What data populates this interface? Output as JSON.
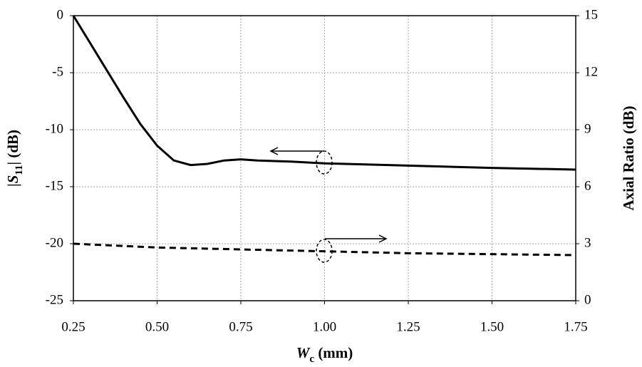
{
  "chart_data": {
    "type": "line",
    "x_label": [
      "W",
      "c",
      " (mm)"
    ],
    "y_label": [
      "|",
      "S",
      "11",
      "| (dB)"
    ],
    "y2_label": "Axial Ratio (dB)",
    "xlim": [
      0.25,
      1.75
    ],
    "xticks": [
      0.25,
      {
        "value": 0.5,
        "label": "0.50"
      },
      0.75,
      {
        "value": 1,
        "label": "1.00"
      },
      1.25,
      {
        "value": 1.5,
        "label": "1.50"
      },
      1.75
    ],
    "ylim": [
      -25,
      0
    ],
    "yticks": [
      -25,
      -20,
      -15,
      -10,
      -5,
      0
    ],
    "y2lim": [
      0,
      15
    ],
    "y2ticks": [
      0,
      3,
      6,
      9,
      12,
      15
    ],
    "grid": true,
    "series": [
      {
        "color": "#000000",
        "dash": false,
        "x": [
          0.25,
          0.3,
          0.35,
          0.4,
          0.45,
          0.5,
          0.55,
          0.6,
          0.65,
          0.7,
          0.75,
          0.8,
          0.9,
          1.0,
          1.25,
          1.5,
          1.75
        ],
        "values": [
          0,
          -2.4,
          -4.8,
          -7.2,
          -9.5,
          -11.4,
          -12.7,
          -13.1,
          -13.0,
          -12.7,
          -12.6,
          -12.7,
          -12.8,
          -12.95,
          -13.15,
          -13.35,
          -13.5
        ]
      },
      {
        "color": "#000000",
        "dash": true,
        "axis": "y2",
        "x": [
          0.25,
          0.5,
          0.75,
          1.0,
          1.25,
          1.5,
          1.75
        ],
        "values": [
          3.0,
          2.8,
          2.7,
          2.6,
          2.5,
          2.45,
          2.4
        ]
      }
    ]
  }
}
